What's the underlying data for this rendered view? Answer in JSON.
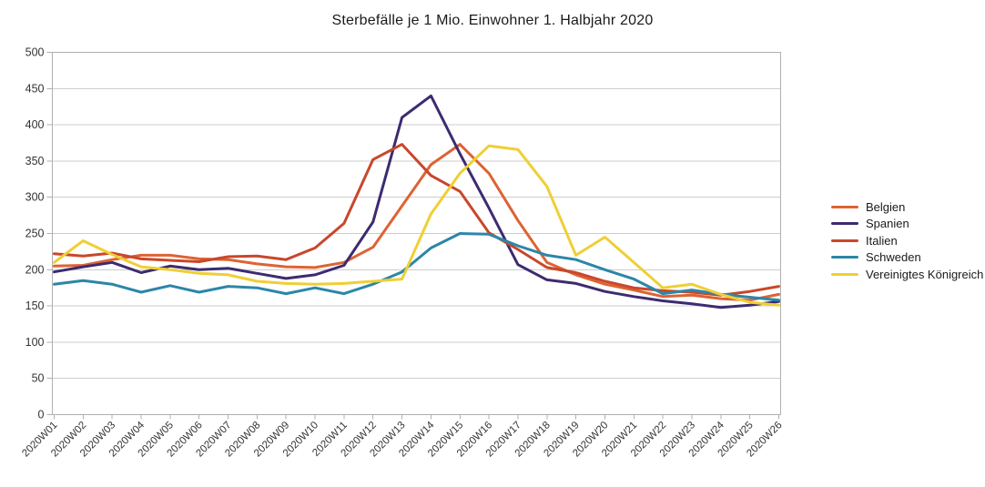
{
  "chart_data": {
    "type": "line",
    "title": "Sterbefälle je 1 Mio. Einwohner 1. Halbjahr 2020",
    "categories": [
      "2020W01",
      "2020W02",
      "2020W03",
      "2020W04",
      "2020W05",
      "2020W06",
      "2020W07",
      "2020W08",
      "2020W09",
      "2020W10",
      "2020W11",
      "2020W12",
      "2020W13",
      "2020W14",
      "2020W15",
      "2020W16",
      "2020W17",
      "2020W18",
      "2020W19",
      "2020W20",
      "2020W21",
      "2020W22",
      "2020W23",
      "2020W24",
      "2020W25",
      "2020W26"
    ],
    "series": [
      {
        "name": "Belgien",
        "color": "#DD6333",
        "values": [
          205,
          206,
          214,
          220,
          220,
          215,
          214,
          208,
          204,
          203,
          210,
          231,
          288,
          345,
          373,
          333,
          268,
          210,
          193,
          180,
          172,
          163,
          165,
          160,
          158,
          166
        ]
      },
      {
        "name": "Spanien",
        "color": "#3D2B70",
        "values": [
          197,
          204,
          210,
          196,
          205,
          200,
          202,
          195,
          188,
          193,
          206,
          266,
          410,
          440,
          360,
          285,
          207,
          186,
          181,
          170,
          163,
          157,
          153,
          148,
          151,
          156
        ]
      },
      {
        "name": "Italien",
        "color": "#C9472B",
        "values": [
          222,
          219,
          223,
          215,
          213,
          211,
          218,
          219,
          214,
          230,
          264,
          352,
          373,
          330,
          308,
          251,
          228,
          203,
          196,
          184,
          175,
          171,
          169,
          165,
          170,
          177
        ]
      },
      {
        "name": "Schweden",
        "color": "#2C86A8",
        "values": [
          180,
          185,
          180,
          169,
          178,
          169,
          177,
          175,
          167,
          175,
          167,
          180,
          197,
          230,
          250,
          249,
          233,
          220,
          214,
          200,
          187,
          167,
          172,
          166,
          162,
          158
        ]
      },
      {
        "name": "Vereinigtes Königreich",
        "color": "#EFCF35",
        "values": [
          210,
          240,
          221,
          204,
          200,
          195,
          193,
          184,
          181,
          180,
          181,
          184,
          187,
          277,
          333,
          371,
          366,
          315,
          220,
          245,
          210,
          175,
          180,
          166,
          155,
          151
        ]
      }
    ],
    "ylim": [
      0,
      500
    ],
    "ytick_step": 50,
    "grid": "horizontal",
    "legend_position": "right",
    "colors": {
      "grid": "#cdcdcd",
      "axis": "#b0b0b0",
      "tick_label": "#333333",
      "background": "#ffffff"
    }
  }
}
